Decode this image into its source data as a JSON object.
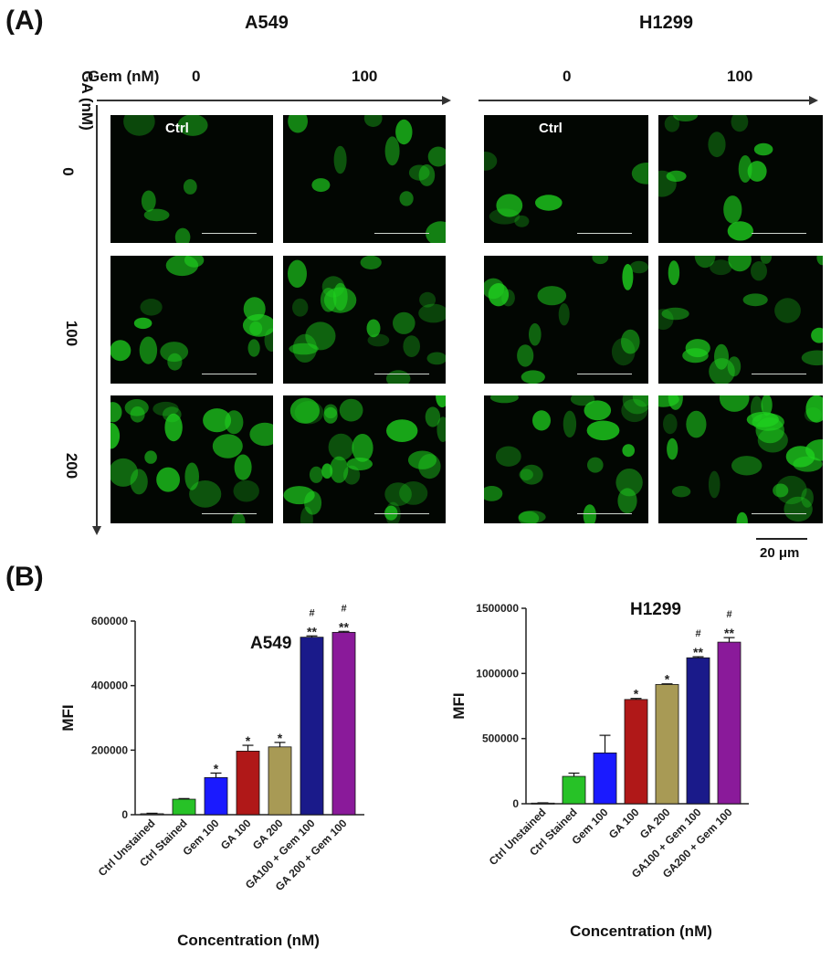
{
  "panel_a": {
    "letter": "(A)",
    "groups": [
      {
        "title": "A549",
        "gem_header": "Gem (nM)",
        "gem_levels": [
          "0",
          "100"
        ]
      },
      {
        "title": "H1299",
        "gem_header": "",
        "gem_levels": [
          "0",
          "100"
        ]
      }
    ],
    "ga_header": "GA (nM)",
    "ga_levels": [
      "0",
      "100",
      "200"
    ],
    "ctrl_label": "Ctrl",
    "scale_bar": "20 μm",
    "image_tint": "#1fd21f"
  },
  "panel_b": {
    "letter": "(B)"
  },
  "chart_data": [
    {
      "type": "bar",
      "title": "A549",
      "ylabel": "MFI",
      "xlabel": "Concentration (nM)",
      "ylim": [
        0,
        600000
      ],
      "yticks": [
        "0",
        "200000",
        "400000",
        "600000"
      ],
      "categories": [
        "Ctrl Unstained",
        "Ctrl Stained",
        "Gem 100",
        "GA 100",
        "GA 200",
        "GA100 + Gem 100",
        "GA 200 + Gem 100"
      ],
      "values": [
        3000,
        48000,
        115000,
        197000,
        210000,
        550000,
        565000
      ],
      "errors": [
        1500,
        2000,
        14000,
        18000,
        14000,
        4000,
        3000
      ],
      "colors": [
        "#7a7a7a",
        "#27c227",
        "#1a1aff",
        "#b01818",
        "#a89a55",
        "#1a1a8a",
        "#8a1a9a"
      ],
      "annotations": [
        "",
        "",
        "*",
        "*",
        "*",
        "**\n#",
        "**\n#"
      ]
    },
    {
      "type": "bar",
      "title": "H1299",
      "ylabel": "MFI",
      "xlabel": "Concentration (nM)",
      "ylim": [
        0,
        1500000
      ],
      "yticks": [
        "0",
        "500000",
        "1000000",
        "1500000"
      ],
      "categories": [
        "Ctrl Unstained",
        "Ctrl Stained",
        "Gem 100",
        "GA 100",
        "GA 200",
        "GA100 + Gem 100",
        "GA200 + Gem 100"
      ],
      "values": [
        5000,
        210000,
        390000,
        800000,
        915000,
        1120000,
        1240000
      ],
      "errors": [
        2000,
        25000,
        135000,
        8000,
        5000,
        8000,
        35000
      ],
      "colors": [
        "#7a7a7a",
        "#27c227",
        "#1a1aff",
        "#b01818",
        "#a89a55",
        "#1a1a8a",
        "#8a1a9a"
      ],
      "annotations": [
        "",
        "",
        "",
        "*",
        "*",
        "**\n#",
        "**\n#"
      ]
    }
  ]
}
